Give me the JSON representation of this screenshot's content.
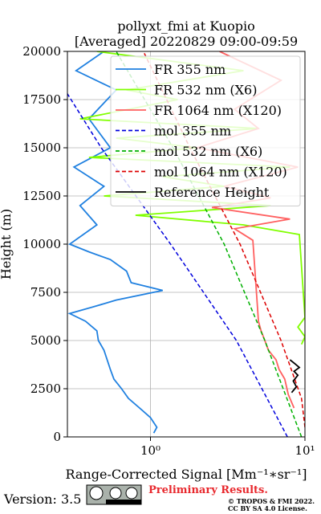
{
  "chart_data": {
    "type": "line",
    "title": "pollyxt_fmi at Kuopio",
    "subtitle": "[Averaged] 20220829 09:00-09:59",
    "xlabel": "Range-Corrected Signal [Mm⁻¹∗sr⁻¹]",
    "ylabel": "Height (m)",
    "log_x": true,
    "grid": true,
    "legend": "upper right",
    "xlim": [
      0.29,
      10
    ],
    "ylim": [
      0,
      20000
    ],
    "xticks": [
      {
        "value": 1,
        "label": "10⁰"
      },
      {
        "value": 10,
        "label": "10¹"
      }
    ],
    "yticks": [
      0,
      2500,
      5000,
      7500,
      10000,
      12500,
      15000,
      17500,
      20000
    ],
    "series": [
      {
        "name": "FR 355 nm",
        "color": "#1f80e0",
        "dash": false,
        "x": [
          1.05,
          1.1,
          1.0,
          0.85,
          0.72,
          0.65,
          0.58,
          0.55,
          0.5,
          0.46,
          0.45,
          0.38,
          0.3,
          0.45,
          0.6,
          1.2,
          0.75,
          0.7,
          0.55,
          0.4,
          0.3,
          0.45,
          0.35,
          0.5,
          0.32,
          0.55,
          0.4,
          0.6,
          0.33,
          0.5
        ],
        "y": [
          200,
          500,
          1000,
          1500,
          2000,
          2500,
          3000,
          3500,
          4500,
          5000,
          5500,
          6000,
          6400,
          6800,
          7100,
          7600,
          8000,
          8600,
          9200,
          9600,
          10000,
          11000,
          12000,
          13000,
          14000,
          15000,
          16500,
          18000,
          19000,
          20000
        ]
      },
      {
        "name": "FR 532 nm (X6)",
        "color": "#80ff00",
        "dash": false,
        "x": [
          9.5,
          10,
          9,
          10,
          9.2,
          4,
          0.8,
          6,
          0.5,
          3,
          1.2,
          8,
          0.4,
          2,
          0.6,
          5,
          0.35,
          1.5,
          0.7,
          4,
          0.45
        ],
        "y": [
          4800,
          5200,
          5700,
          6200,
          10500,
          11000,
          11500,
          12000,
          12500,
          13000,
          13500,
          14000,
          14500,
          15000,
          15500,
          16000,
          16500,
          17500,
          18000,
          19000,
          20000
        ]
      },
      {
        "name": "FR 1064 nm (X120)",
        "color": "#ff6060",
        "dash": false,
        "x": [
          8.5,
          7.8,
          7.4,
          6.8,
          6.5,
          5.8,
          5.5,
          5.2,
          5.0,
          4.6,
          3.5,
          8,
          2.5,
          6,
          3,
          9,
          2,
          5,
          3.5,
          7,
          2.8
        ],
        "y": [
          1500,
          2200,
          3000,
          3500,
          4000,
          4500,
          5000,
          5500,
          6000,
          10200,
          10800,
          11300,
          11900,
          12400,
          13000,
          14000,
          15000,
          16000,
          17000,
          18500,
          20000
        ]
      },
      {
        "name": "mol 355 nm",
        "color": "#0000dd",
        "dash": true,
        "x": [
          7.7,
          3.6,
          1.35,
          0.48,
          0.29
        ],
        "y": [
          0,
          5000,
          10000,
          15000,
          17800
        ]
      },
      {
        "name": "mol 532 nm (X6)",
        "color": "#00b000",
        "dash": true,
        "x": [
          9.5,
          5.5,
          3.0,
          1.4,
          0.6
        ],
        "y": [
          0,
          5000,
          10000,
          15000,
          20000
        ]
      },
      {
        "name": "mol 1064 nm (X120)",
        "color": "#dd0000",
        "dash": true,
        "x": [
          10,
          9.5,
          7,
          3.8,
          1.8,
          0.9
        ],
        "y": [
          500,
          2000,
          5000,
          10000,
          15000,
          20000
        ]
      },
      {
        "name": "Reference Height",
        "color": "#000000",
        "dash": false,
        "x": [
          8.2,
          8.8,
          8.4,
          9.0,
          8.5,
          9.2,
          8.6,
          8.0
        ],
        "y": [
          2300,
          2600,
          2900,
          3200,
          3400,
          3600,
          3800,
          4000
        ]
      }
    ],
    "footer": {
      "version": "Version: 3.5",
      "notice": "Preliminary Results.",
      "copyright": [
        "© TROPOS & FMI 2022.",
        "CC BY SA 4.0 License."
      ]
    }
  }
}
